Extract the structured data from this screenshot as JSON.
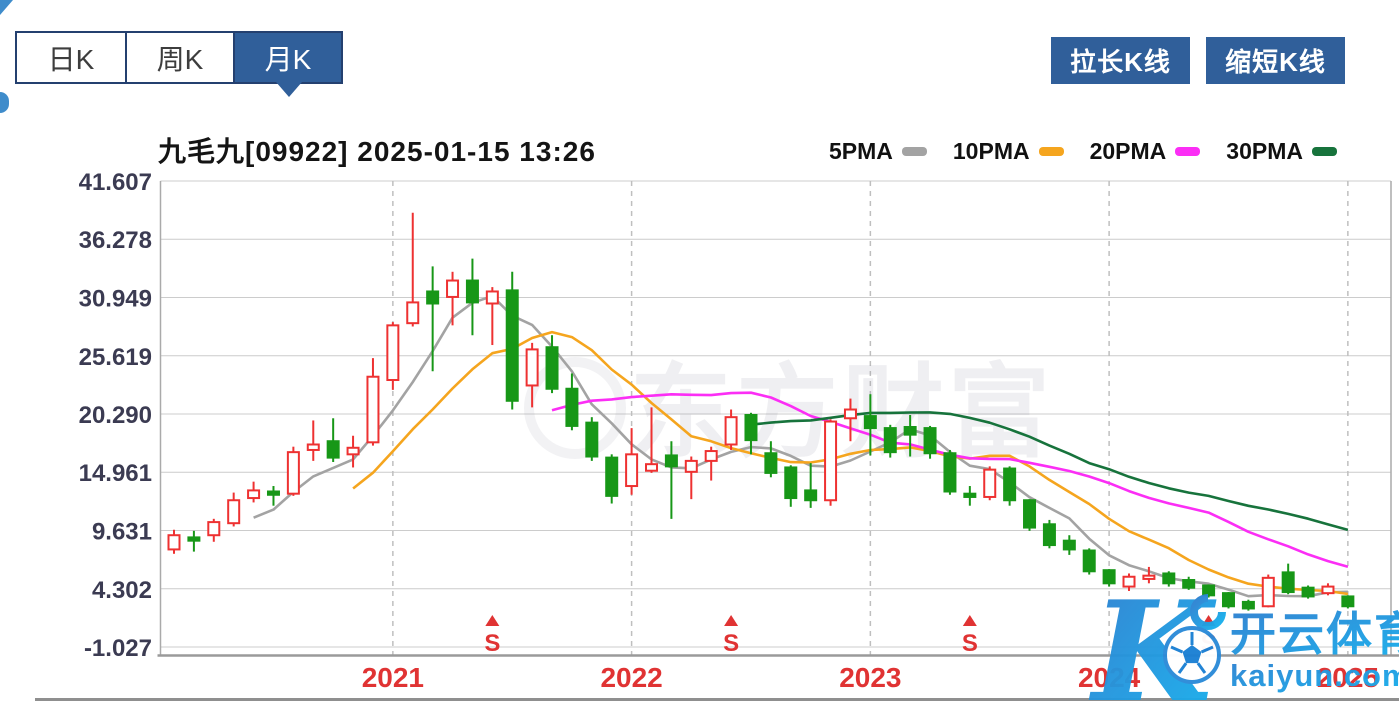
{
  "tabs": [
    {
      "label": "日K",
      "selected": false
    },
    {
      "label": "周K",
      "selected": false
    },
    {
      "label": "月K",
      "selected": true
    }
  ],
  "buttons": {
    "stretch": "拉长K线",
    "shrink": "缩短K线"
  },
  "header": {
    "title": "九毛九[09922] 2025-01-15 13:26"
  },
  "legend": [
    {
      "label": "5PMA",
      "color": "#a3a3a3"
    },
    {
      "label": "10PMA",
      "color": "#f5a51e"
    },
    {
      "label": "20PMA",
      "color": "#fb2ef5"
    },
    {
      "label": "30PMA",
      "color": "#17733c"
    }
  ],
  "watermarks": {
    "center": "东方财富",
    "site_name": "开云体育",
    "site_domain": "kaiyun.com"
  },
  "chart_data": {
    "type": "candlestick",
    "title": "九毛九[09922]",
    "timestamp": "2025-01-15 13:26",
    "interval": "monthly",
    "grid": true,
    "legend_position": "top-right",
    "ylim": [
      -1.027,
      41.607
    ],
    "y_ticks": [
      41.607,
      36.278,
      30.949,
      25.619,
      20.29,
      14.961,
      9.631,
      4.302,
      -1.027
    ],
    "x_year_labels": [
      "2021",
      "2022",
      "2023",
      "2024",
      "2025"
    ],
    "colors": {
      "up": "#ee3131",
      "down": "#179717",
      "marker": "#e03333"
    },
    "ma_periods": [
      5,
      10,
      20,
      30
    ],
    "event_markers": [
      {
        "label": "S",
        "month": "2021-06"
      },
      {
        "label": "S",
        "month": "2022-06"
      },
      {
        "label": "S",
        "month": "2023-06"
      },
      {
        "label": "S",
        "month": "2024-06"
      }
    ],
    "months": [
      {
        "m": "2020-02",
        "o": 7.9,
        "c": 9.2,
        "h": 9.7,
        "l": 7.5
      },
      {
        "m": "2020-03",
        "o": 9.0,
        "c": 8.7,
        "h": 9.6,
        "l": 7.7
      },
      {
        "m": "2020-04",
        "o": 9.2,
        "c": 10.4,
        "h": 10.7,
        "l": 8.6
      },
      {
        "m": "2020-05",
        "o": 10.3,
        "c": 12.4,
        "h": 13.1,
        "l": 10.0
      },
      {
        "m": "2020-06",
        "o": 12.6,
        "c": 13.3,
        "h": 14.1,
        "l": 12.2
      },
      {
        "m": "2020-07",
        "o": 13.2,
        "c": 12.9,
        "h": 13.7,
        "l": 11.9
      },
      {
        "m": "2020-08",
        "o": 13.0,
        "c": 16.8,
        "h": 17.3,
        "l": 12.8
      },
      {
        "m": "2020-09",
        "o": 17.0,
        "c": 17.5,
        "h": 19.7,
        "l": 16.0
      },
      {
        "m": "2020-10",
        "o": 17.8,
        "c": 16.3,
        "h": 19.9,
        "l": 15.9
      },
      {
        "m": "2020-11",
        "o": 16.6,
        "c": 17.2,
        "h": 18.3,
        "l": 15.4
      },
      {
        "m": "2020-12",
        "o": 17.7,
        "c": 23.7,
        "h": 25.4,
        "l": 17.4
      },
      {
        "m": "2021-01",
        "o": 23.4,
        "c": 28.4,
        "h": 28.7,
        "l": 22.5
      },
      {
        "m": "2021-02",
        "o": 28.6,
        "c": 30.5,
        "h": 38.7,
        "l": 28.3
      },
      {
        "m": "2021-03",
        "o": 31.5,
        "c": 30.4,
        "h": 33.8,
        "l": 24.2
      },
      {
        "m": "2021-04",
        "o": 31.0,
        "c": 32.5,
        "h": 33.3,
        "l": 28.4
      },
      {
        "m": "2021-05",
        "o": 32.5,
        "c": 30.5,
        "h": 34.5,
        "l": 27.5
      },
      {
        "m": "2021-06",
        "o": 30.4,
        "c": 31.5,
        "h": 31.9,
        "l": 26.6
      },
      {
        "m": "2021-07",
        "o": 31.6,
        "c": 21.5,
        "h": 33.3,
        "l": 20.7
      },
      {
        "m": "2021-08",
        "o": 22.9,
        "c": 26.2,
        "h": 26.8,
        "l": 20.9
      },
      {
        "m": "2021-09",
        "o": 26.4,
        "c": 22.6,
        "h": 27.5,
        "l": 22.2
      },
      {
        "m": "2021-10",
        "o": 22.6,
        "c": 19.2,
        "h": 24.0,
        "l": 18.8
      },
      {
        "m": "2021-11",
        "o": 19.5,
        "c": 16.4,
        "h": 20.0,
        "l": 16.0
      },
      {
        "m": "2021-12",
        "o": 16.3,
        "c": 12.8,
        "h": 16.6,
        "l": 12.1
      },
      {
        "m": "2022-01",
        "o": 13.7,
        "c": 16.6,
        "h": 19.0,
        "l": 12.9
      },
      {
        "m": "2022-02",
        "o": 15.1,
        "c": 15.7,
        "h": 20.9,
        "l": 14.9
      },
      {
        "m": "2022-03",
        "o": 16.5,
        "c": 15.5,
        "h": 17.8,
        "l": 10.7
      },
      {
        "m": "2022-04",
        "o": 15.0,
        "c": 16.0,
        "h": 16.4,
        "l": 12.5
      },
      {
        "m": "2022-05",
        "o": 16.0,
        "c": 16.9,
        "h": 17.3,
        "l": 14.2
      },
      {
        "m": "2022-06",
        "o": 17.5,
        "c": 20.0,
        "h": 20.7,
        "l": 17.0
      },
      {
        "m": "2022-07",
        "o": 20.2,
        "c": 17.9,
        "h": 20.4,
        "l": 16.6
      },
      {
        "m": "2022-08",
        "o": 16.7,
        "c": 14.9,
        "h": 17.8,
        "l": 14.5
      },
      {
        "m": "2022-09",
        "o": 15.4,
        "c": 12.6,
        "h": 15.6,
        "l": 11.8
      },
      {
        "m": "2022-10",
        "o": 13.3,
        "c": 12.4,
        "h": 15.8,
        "l": 11.7
      },
      {
        "m": "2022-11",
        "o": 12.4,
        "c": 19.6,
        "h": 19.8,
        "l": 11.9
      },
      {
        "m": "2022-12",
        "o": 19.9,
        "c": 20.7,
        "h": 21.7,
        "l": 17.8
      },
      {
        "m": "2023-01",
        "o": 20.1,
        "c": 19.0,
        "h": 22.1,
        "l": 16.5
      },
      {
        "m": "2023-02",
        "o": 19.0,
        "c": 16.8,
        "h": 19.3,
        "l": 16.3
      },
      {
        "m": "2023-03",
        "o": 19.1,
        "c": 18.4,
        "h": 20.2,
        "l": 16.4
      },
      {
        "m": "2023-04",
        "o": 19.0,
        "c": 16.7,
        "h": 19.2,
        "l": 16.2
      },
      {
        "m": "2023-05",
        "o": 16.7,
        "c": 13.2,
        "h": 17.0,
        "l": 12.9
      },
      {
        "m": "2023-06",
        "o": 13.0,
        "c": 12.7,
        "h": 13.7,
        "l": 11.9
      },
      {
        "m": "2023-07",
        "o": 12.7,
        "c": 15.2,
        "h": 15.5,
        "l": 12.4
      },
      {
        "m": "2023-08",
        "o": 15.3,
        "c": 12.4,
        "h": 15.5,
        "l": 11.9
      },
      {
        "m": "2023-09",
        "o": 12.4,
        "c": 9.9,
        "h": 12.5,
        "l": 9.6
      },
      {
        "m": "2023-10",
        "o": 10.2,
        "c": 8.3,
        "h": 10.6,
        "l": 8.0
      },
      {
        "m": "2023-11",
        "o": 8.7,
        "c": 7.9,
        "h": 9.2,
        "l": 7.4
      },
      {
        "m": "2023-12",
        "o": 7.8,
        "c": 5.9,
        "h": 8.0,
        "l": 5.6
      },
      {
        "m": "2024-01",
        "o": 6.0,
        "c": 4.8,
        "h": 6.1,
        "l": 4.5
      },
      {
        "m": "2024-02",
        "o": 4.5,
        "c": 5.4,
        "h": 5.7,
        "l": 4.1
      },
      {
        "m": "2024-03",
        "o": 5.2,
        "c": 5.5,
        "h": 6.3,
        "l": 4.8
      },
      {
        "m": "2024-04",
        "o": 5.7,
        "c": 4.8,
        "h": 5.9,
        "l": 4.5
      },
      {
        "m": "2024-05",
        "o": 5.1,
        "c": 4.4,
        "h": 5.4,
        "l": 4.2
      },
      {
        "m": "2024-06",
        "o": 4.6,
        "c": 3.7,
        "h": 4.7,
        "l": 3.5
      },
      {
        "m": "2024-07",
        "o": 3.9,
        "c": 2.7,
        "h": 4.0,
        "l": 2.5
      },
      {
        "m": "2024-08",
        "o": 3.1,
        "c": 2.5,
        "h": 3.3,
        "l": 2.3
      },
      {
        "m": "2024-09",
        "o": 2.7,
        "c": 5.3,
        "h": 5.6,
        "l": 2.6
      },
      {
        "m": "2024-10",
        "o": 5.8,
        "c": 4.0,
        "h": 6.6,
        "l": 3.8
      },
      {
        "m": "2024-11",
        "o": 4.4,
        "c": 3.6,
        "h": 4.6,
        "l": 3.4
      },
      {
        "m": "2024-12",
        "o": 3.9,
        "c": 4.5,
        "h": 4.8,
        "l": 3.7
      },
      {
        "m": "2025-01",
        "o": 3.6,
        "c": 2.7,
        "h": 3.7,
        "l": 2.5
      }
    ]
  }
}
